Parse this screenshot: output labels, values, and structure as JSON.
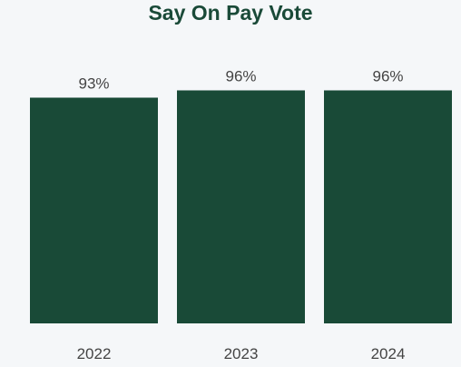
{
  "chart_data": {
    "type": "bar",
    "title": "Say On Pay Vote",
    "categories": [
      "2022",
      "2023",
      "2024"
    ],
    "values": [
      93,
      96,
      96
    ],
    "value_labels": [
      "93%",
      "96%",
      "96%"
    ],
    "value_suffix": "%",
    "bar_color": "#194a37",
    "xlabel": "",
    "ylabel": "",
    "grid": false,
    "legend": "none"
  }
}
